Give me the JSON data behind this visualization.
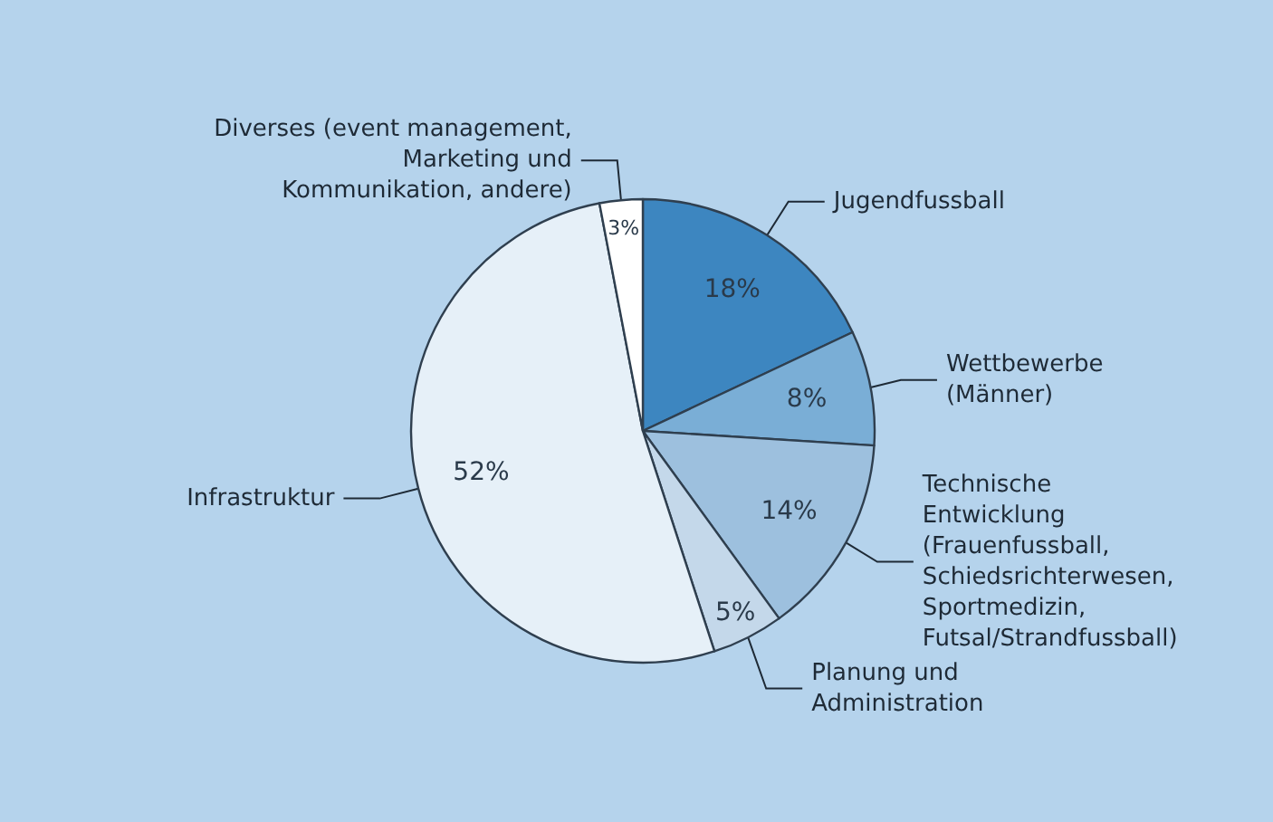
{
  "chart_data": {
    "type": "pie",
    "categories": [
      "Jugendfussball",
      "Wettbewerbe\n(Männer)",
      "Technische\nEntwicklung\n(Frauenfussball,\nSchiedsrichterwesen,\nSportmedizin,\nFutsal/Strandfussball)",
      "Planung und\nAdministration",
      "Infrastruktur",
      "Diverses (event management,\nMarketing und\nKommunikation, andere)"
    ],
    "values": [
      18,
      8,
      14,
      5,
      52,
      3
    ],
    "value_labels": [
      "18%",
      "8%",
      "14%",
      "5%",
      "52%",
      "3%"
    ],
    "colors": [
      "#3d86c0",
      "#7aaed6",
      "#9dc0de",
      "#c4d8ea",
      "#e6f0f8",
      "#ffffff"
    ],
    "legend": false
  }
}
